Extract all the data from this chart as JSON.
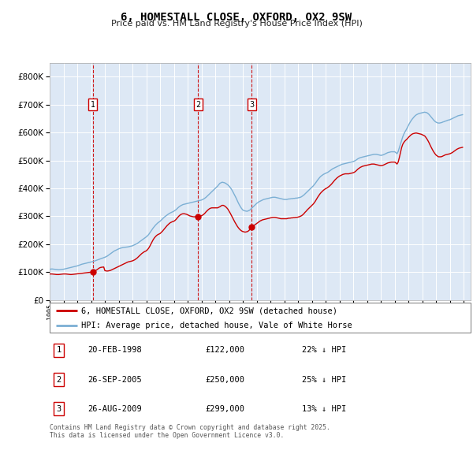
{
  "title": "6, HOMESTALL CLOSE, OXFORD, OX2 9SW",
  "subtitle": "Price paid vs. HM Land Registry's House Price Index (HPI)",
  "legend_property": "6, HOMESTALL CLOSE, OXFORD, OX2 9SW (detached house)",
  "legend_hpi": "HPI: Average price, detached house, Vale of White Horse",
  "footer": "Contains HM Land Registry data © Crown copyright and database right 2025.\nThis data is licensed under the Open Government Licence v3.0.",
  "transactions": [
    {
      "num": 1,
      "date": "20-FEB-1998",
      "price": 122000,
      "pct": "22%",
      "year_x": 1998.13
    },
    {
      "num": 2,
      "date": "26-SEP-2005",
      "price": 250000,
      "pct": "25%",
      "year_x": 2005.75
    },
    {
      "num": 3,
      "date": "26-AUG-2009",
      "price": 299000,
      "pct": "13%",
      "year_x": 2009.65
    }
  ],
  "property_color": "#cc0000",
  "hpi_color": "#7bafd4",
  "background_color": "#dde8f5",
  "ylim": [
    0,
    850000
  ],
  "xlim_start": 1995.0,
  "xlim_end": 2025.5,
  "hpi_data_years": [
    1995.0,
    1995.083,
    1995.167,
    1995.25,
    1995.333,
    1995.417,
    1995.5,
    1995.583,
    1995.667,
    1995.75,
    1995.833,
    1995.917,
    1996.0,
    1996.083,
    1996.167,
    1996.25,
    1996.333,
    1996.417,
    1996.5,
    1996.583,
    1996.667,
    1996.75,
    1996.833,
    1996.917,
    1997.0,
    1997.083,
    1997.167,
    1997.25,
    1997.333,
    1997.417,
    1997.5,
    1997.583,
    1997.667,
    1997.75,
    1997.833,
    1997.917,
    1998.0,
    1998.083,
    1998.167,
    1998.25,
    1998.333,
    1998.417,
    1998.5,
    1998.583,
    1998.667,
    1998.75,
    1998.833,
    1998.917,
    1999.0,
    1999.083,
    1999.167,
    1999.25,
    1999.333,
    1999.417,
    1999.5,
    1999.583,
    1999.667,
    1999.75,
    1999.833,
    1999.917,
    2000.0,
    2000.083,
    2000.167,
    2000.25,
    2000.333,
    2000.417,
    2000.5,
    2000.583,
    2000.667,
    2000.75,
    2000.833,
    2000.917,
    2001.0,
    2001.083,
    2001.167,
    2001.25,
    2001.333,
    2001.417,
    2001.5,
    2001.583,
    2001.667,
    2001.75,
    2001.833,
    2001.917,
    2002.0,
    2002.083,
    2002.167,
    2002.25,
    2002.333,
    2002.417,
    2002.5,
    2002.583,
    2002.667,
    2002.75,
    2002.833,
    2002.917,
    2003.0,
    2003.083,
    2003.167,
    2003.25,
    2003.333,
    2003.417,
    2003.5,
    2003.583,
    2003.667,
    2003.75,
    2003.833,
    2003.917,
    2004.0,
    2004.083,
    2004.167,
    2004.25,
    2004.333,
    2004.417,
    2004.5,
    2004.583,
    2004.667,
    2004.75,
    2004.833,
    2004.917,
    2005.0,
    2005.083,
    2005.167,
    2005.25,
    2005.333,
    2005.417,
    2005.5,
    2005.583,
    2005.667,
    2005.75,
    2005.833,
    2005.917,
    2006.0,
    2006.083,
    2006.167,
    2006.25,
    2006.333,
    2006.417,
    2006.5,
    2006.583,
    2006.667,
    2006.75,
    2006.833,
    2006.917,
    2007.0,
    2007.083,
    2007.167,
    2007.25,
    2007.333,
    2007.417,
    2007.5,
    2007.583,
    2007.667,
    2007.75,
    2007.833,
    2007.917,
    2008.0,
    2008.083,
    2008.167,
    2008.25,
    2008.333,
    2008.417,
    2008.5,
    2008.583,
    2008.667,
    2008.75,
    2008.833,
    2008.917,
    2009.0,
    2009.083,
    2009.167,
    2009.25,
    2009.333,
    2009.417,
    2009.5,
    2009.583,
    2009.667,
    2009.75,
    2009.833,
    2009.917,
    2010.0,
    2010.083,
    2010.167,
    2010.25,
    2010.333,
    2010.417,
    2010.5,
    2010.583,
    2010.667,
    2010.75,
    2010.833,
    2010.917,
    2011.0,
    2011.083,
    2011.167,
    2011.25,
    2011.333,
    2011.417,
    2011.5,
    2011.583,
    2011.667,
    2011.75,
    2011.833,
    2011.917,
    2012.0,
    2012.083,
    2012.167,
    2012.25,
    2012.333,
    2012.417,
    2012.5,
    2012.583,
    2012.667,
    2012.75,
    2012.833,
    2012.917,
    2013.0,
    2013.083,
    2013.167,
    2013.25,
    2013.333,
    2013.417,
    2013.5,
    2013.583,
    2013.667,
    2013.75,
    2013.833,
    2013.917,
    2014.0,
    2014.083,
    2014.167,
    2014.25,
    2014.333,
    2014.417,
    2014.5,
    2014.583,
    2014.667,
    2014.75,
    2014.833,
    2014.917,
    2015.0,
    2015.083,
    2015.167,
    2015.25,
    2015.333,
    2015.417,
    2015.5,
    2015.583,
    2015.667,
    2015.75,
    2015.833,
    2015.917,
    2016.0,
    2016.083,
    2016.167,
    2016.25,
    2016.333,
    2016.417,
    2016.5,
    2016.583,
    2016.667,
    2016.75,
    2016.833,
    2016.917,
    2017.0,
    2017.083,
    2017.167,
    2017.25,
    2017.333,
    2017.417,
    2017.5,
    2017.583,
    2017.667,
    2017.75,
    2017.833,
    2017.917,
    2018.0,
    2018.083,
    2018.167,
    2018.25,
    2018.333,
    2018.417,
    2018.5,
    2018.583,
    2018.667,
    2018.75,
    2018.833,
    2018.917,
    2019.0,
    2019.083,
    2019.167,
    2019.25,
    2019.333,
    2019.417,
    2019.5,
    2019.583,
    2019.667,
    2019.75,
    2019.833,
    2019.917,
    2020.0,
    2020.083,
    2020.167,
    2020.25,
    2020.333,
    2020.417,
    2020.5,
    2020.583,
    2020.667,
    2020.75,
    2020.833,
    2020.917,
    2021.0,
    2021.083,
    2021.167,
    2021.25,
    2021.333,
    2021.417,
    2021.5,
    2021.583,
    2021.667,
    2021.75,
    2021.833,
    2021.917,
    2022.0,
    2022.083,
    2022.167,
    2022.25,
    2022.333,
    2022.417,
    2022.5,
    2022.583,
    2022.667,
    2022.75,
    2022.833,
    2022.917,
    2023.0,
    2023.083,
    2023.167,
    2023.25,
    2023.333,
    2023.417,
    2023.5,
    2023.583,
    2023.667,
    2023.75,
    2023.833,
    2023.917,
    2024.0,
    2024.083,
    2024.167,
    2024.25,
    2024.333,
    2024.417,
    2024.5,
    2024.583,
    2024.667,
    2024.75,
    2024.833,
    2024.917
  ],
  "hpi_data_values": [
    110000,
    110500,
    111000,
    110500,
    110000,
    109500,
    109000,
    108500,
    108000,
    108500,
    109000,
    109500,
    110000,
    111000,
    112000,
    113000,
    114000,
    115000,
    116000,
    117000,
    118000,
    119000,
    120000,
    121000,
    122000,
    123500,
    125000,
    126500,
    128000,
    129000,
    130000,
    131000,
    132000,
    133000,
    134000,
    135000,
    136000,
    137000,
    138000,
    139500,
    141000,
    142500,
    144000,
    145500,
    147000,
    148500,
    150000,
    151500,
    153000,
    155000,
    157000,
    160000,
    163000,
    166000,
    169000,
    172000,
    175000,
    177000,
    179000,
    181000,
    183000,
    184500,
    186000,
    187000,
    188000,
    188500,
    189000,
    189500,
    190000,
    191000,
    192000,
    193000,
    194000,
    196000,
    198000,
    200000,
    202000,
    205000,
    208000,
    211000,
    214000,
    217000,
    220000,
    223000,
    226000,
    230000,
    234000,
    240000,
    246000,
    252000,
    258000,
    263000,
    268000,
    272000,
    276000,
    279000,
    282000,
    286000,
    290000,
    294000,
    298000,
    301000,
    304000,
    307000,
    310000,
    312000,
    314000,
    316000,
    318000,
    321000,
    324000,
    328000,
    332000,
    335000,
    338000,
    340000,
    342000,
    343000,
    344000,
    345000,
    346000,
    347000,
    348000,
    349000,
    350000,
    351000,
    352000,
    353000,
    354000,
    355000,
    356000,
    357000,
    358000,
    360000,
    362000,
    365000,
    368000,
    372000,
    376000,
    380000,
    384000,
    388000,
    392000,
    396000,
    400000,
    404000,
    408000,
    413000,
    418000,
    420000,
    422000,
    421000,
    420000,
    418000,
    415000,
    412000,
    408000,
    403000,
    397000,
    390000,
    382000,
    374000,
    366000,
    357000,
    348000,
    340000,
    333000,
    327000,
    322000,
    320000,
    319000,
    318000,
    318000,
    320000,
    322000,
    326000,
    330000,
    334000,
    338000,
    342000,
    346000,
    349000,
    352000,
    354000,
    356000,
    358000,
    360000,
    361000,
    362000,
    363000,
    364000,
    365000,
    366000,
    367000,
    368000,
    368000,
    368000,
    367000,
    366000,
    365000,
    364000,
    363000,
    362000,
    361000,
    360000,
    360000,
    360000,
    361000,
    362000,
    362000,
    363000,
    363000,
    364000,
    364000,
    365000,
    365000,
    366000,
    367000,
    368000,
    370000,
    373000,
    376000,
    380000,
    384000,
    388000,
    392000,
    396000,
    400000,
    404000,
    408000,
    413000,
    418000,
    424000,
    430000,
    435000,
    440000,
    444000,
    447000,
    450000,
    452000,
    454000,
    456000,
    458000,
    461000,
    464000,
    467000,
    470000,
    472000,
    474000,
    476000,
    478000,
    480000,
    482000,
    484000,
    486000,
    487000,
    488000,
    489000,
    490000,
    491000,
    492000,
    493000,
    494000,
    495000,
    496000,
    498000,
    500000,
    503000,
    506000,
    508000,
    510000,
    511000,
    512000,
    513000,
    514000,
    515000,
    516000,
    517000,
    518000,
    519000,
    520000,
    521000,
    522000,
    522000,
    522000,
    521000,
    520000,
    519000,
    518000,
    519000,
    520000,
    522000,
    524000,
    526000,
    528000,
    529000,
    530000,
    531000,
    531000,
    531000,
    531000,
    528000,
    524000,
    532000,
    545000,
    558000,
    572000,
    585000,
    595000,
    603000,
    610000,
    618000,
    626000,
    634000,
    641000,
    647000,
    652000,
    657000,
    661000,
    664000,
    666000,
    668000,
    669000,
    670000,
    671000,
    672000,
    673000,
    672000,
    671000,
    668000,
    664000,
    659000,
    654000,
    649000,
    644000,
    640000,
    637000,
    635000,
    634000,
    634000,
    635000,
    636000,
    638000,
    639000,
    641000,
    642000,
    644000,
    645000,
    646000,
    648000,
    650000,
    652000,
    654000,
    656000,
    658000,
    660000,
    661000,
    662000,
    663000,
    664000
  ],
  "prop_data_years": [
    1995.0,
    1995.083,
    1995.167,
    1995.25,
    1995.333,
    1995.417,
    1995.5,
    1995.583,
    1995.667,
    1995.75,
    1995.833,
    1995.917,
    1996.0,
    1996.083,
    1996.167,
    1996.25,
    1996.333,
    1996.417,
    1996.5,
    1996.583,
    1996.667,
    1996.75,
    1996.833,
    1996.917,
    1997.0,
    1997.083,
    1997.167,
    1997.25,
    1997.333,
    1997.417,
    1997.5,
    1997.583,
    1997.667,
    1997.75,
    1997.833,
    1997.917,
    1998.0,
    1998.083,
    1998.167,
    1998.25,
    1998.333,
    1998.417,
    1998.5,
    1998.583,
    1998.667,
    1998.75,
    1998.833,
    1998.917,
    1999.0,
    1999.083,
    1999.167,
    1999.25,
    1999.333,
    1999.417,
    1999.5,
    1999.583,
    1999.667,
    1999.75,
    1999.833,
    1999.917,
    2000.0,
    2000.083,
    2000.167,
    2000.25,
    2000.333,
    2000.417,
    2000.5,
    2000.583,
    2000.667,
    2000.75,
    2000.833,
    2000.917,
    2001.0,
    2001.083,
    2001.167,
    2001.25,
    2001.333,
    2001.417,
    2001.5,
    2001.583,
    2001.667,
    2001.75,
    2001.833,
    2001.917,
    2002.0,
    2002.083,
    2002.167,
    2002.25,
    2002.333,
    2002.417,
    2002.5,
    2002.583,
    2002.667,
    2002.75,
    2002.833,
    2002.917,
    2003.0,
    2003.083,
    2003.167,
    2003.25,
    2003.333,
    2003.417,
    2003.5,
    2003.583,
    2003.667,
    2003.75,
    2003.833,
    2003.917,
    2004.0,
    2004.083,
    2004.167,
    2004.25,
    2004.333,
    2004.417,
    2004.5,
    2004.583,
    2004.667,
    2004.75,
    2004.833,
    2004.917,
    2005.0,
    2005.083,
    2005.167,
    2005.25,
    2005.333,
    2005.417,
    2005.5,
    2005.583,
    2005.667,
    2005.75,
    2005.833,
    2005.917,
    2006.0,
    2006.083,
    2006.167,
    2006.25,
    2006.333,
    2006.417,
    2006.5,
    2006.583,
    2006.667,
    2006.75,
    2006.833,
    2006.917,
    2007.0,
    2007.083,
    2007.167,
    2007.25,
    2007.333,
    2007.417,
    2007.5,
    2007.583,
    2007.667,
    2007.75,
    2007.833,
    2007.917,
    2008.0,
    2008.083,
    2008.167,
    2008.25,
    2008.333,
    2008.417,
    2008.5,
    2008.583,
    2008.667,
    2008.75,
    2008.833,
    2008.917,
    2009.0,
    2009.083,
    2009.167,
    2009.25,
    2009.333,
    2009.417,
    2009.5,
    2009.583,
    2009.667,
    2009.75,
    2009.833,
    2009.917,
    2010.0,
    2010.083,
    2010.167,
    2010.25,
    2010.333,
    2010.417,
    2010.5,
    2010.583,
    2010.667,
    2010.75,
    2010.833,
    2010.917,
    2011.0,
    2011.083,
    2011.167,
    2011.25,
    2011.333,
    2011.417,
    2011.5,
    2011.583,
    2011.667,
    2011.75,
    2011.833,
    2011.917,
    2012.0,
    2012.083,
    2012.167,
    2012.25,
    2012.333,
    2012.417,
    2012.5,
    2012.583,
    2012.667,
    2012.75,
    2012.833,
    2012.917,
    2013.0,
    2013.083,
    2013.167,
    2013.25,
    2013.333,
    2013.417,
    2013.5,
    2013.583,
    2013.667,
    2013.75,
    2013.833,
    2013.917,
    2014.0,
    2014.083,
    2014.167,
    2014.25,
    2014.333,
    2014.417,
    2014.5,
    2014.583,
    2014.667,
    2014.75,
    2014.833,
    2014.917,
    2015.0,
    2015.083,
    2015.167,
    2015.25,
    2015.333,
    2015.417,
    2015.5,
    2015.583,
    2015.667,
    2015.75,
    2015.833,
    2015.917,
    2016.0,
    2016.083,
    2016.167,
    2016.25,
    2016.333,
    2016.417,
    2016.5,
    2016.583,
    2016.667,
    2016.75,
    2016.833,
    2016.917,
    2017.0,
    2017.083,
    2017.167,
    2017.25,
    2017.333,
    2017.417,
    2017.5,
    2017.583,
    2017.667,
    2017.75,
    2017.833,
    2017.917,
    2018.0,
    2018.083,
    2018.167,
    2018.25,
    2018.333,
    2018.417,
    2018.5,
    2018.583,
    2018.667,
    2018.75,
    2018.833,
    2018.917,
    2019.0,
    2019.083,
    2019.167,
    2019.25,
    2019.333,
    2019.417,
    2019.5,
    2019.583,
    2019.667,
    2019.75,
    2019.833,
    2019.917,
    2020.0,
    2020.083,
    2020.167,
    2020.25,
    2020.333,
    2020.417,
    2020.5,
    2020.583,
    2020.667,
    2020.75,
    2020.833,
    2020.917,
    2021.0,
    2021.083,
    2021.167,
    2021.25,
    2021.333,
    2021.417,
    2021.5,
    2021.583,
    2021.667,
    2021.75,
    2021.833,
    2021.917,
    2022.0,
    2022.083,
    2022.167,
    2022.25,
    2022.333,
    2022.417,
    2022.5,
    2022.583,
    2022.667,
    2022.75,
    2022.833,
    2022.917,
    2023.0,
    2023.083,
    2023.167,
    2023.25,
    2023.333,
    2023.417,
    2023.5,
    2023.583,
    2023.667,
    2023.75,
    2023.833,
    2023.917,
    2024.0,
    2024.083,
    2024.167,
    2024.25,
    2024.333,
    2024.417,
    2024.5,
    2024.583,
    2024.667,
    2024.75,
    2024.833,
    2024.917
  ],
  "prop_data_values": [
    93000,
    93000,
    93000,
    92500,
    92000,
    91500,
    91000,
    91000,
    91000,
    91500,
    92000,
    92500,
    93000,
    93000,
    93000,
    92500,
    92000,
    91500,
    91000,
    91000,
    91500,
    92000,
    92500,
    93000,
    93500,
    94000,
    94500,
    95000,
    95500,
    96000,
    96500,
    97000,
    97500,
    98000,
    98500,
    99000,
    99500,
    100000,
    101000,
    103000,
    105000,
    108000,
    111000,
    114000,
    116000,
    117000,
    117500,
    118000,
    105000,
    104000,
    103500,
    104000,
    105000,
    106000,
    108000,
    110000,
    112000,
    114000,
    116000,
    118000,
    120000,
    122000,
    124000,
    126000,
    128000,
    130000,
    132000,
    134000,
    136000,
    137000,
    138000,
    139000,
    140000,
    142000,
    144000,
    147000,
    150000,
    154000,
    158000,
    162000,
    166000,
    169000,
    172000,
    174000,
    176000,
    180000,
    185000,
    192000,
    200000,
    208000,
    216000,
    222000,
    227000,
    231000,
    234000,
    236000,
    238000,
    242000,
    246000,
    251000,
    256000,
    261000,
    266000,
    270000,
    274000,
    277000,
    279000,
    281000,
    282000,
    285000,
    289000,
    294000,
    299000,
    303000,
    306000,
    308000,
    309000,
    309000,
    308000,
    307000,
    305000,
    303000,
    301000,
    300000,
    299000,
    298000,
    298000,
    298000,
    298000,
    299000,
    300000,
    301000,
    302000,
    304000,
    307000,
    311000,
    316000,
    320000,
    324000,
    327000,
    329000,
    330000,
    330000,
    330000,
    330000,
    330000,
    330000,
    332000,
    334000,
    337000,
    339000,
    339000,
    337000,
    334000,
    330000,
    325000,
    318000,
    311000,
    303000,
    295000,
    287000,
    279000,
    272000,
    265000,
    259000,
    254000,
    250000,
    247000,
    245000,
    244000,
    243000,
    244000,
    245000,
    248000,
    252000,
    257000,
    261000,
    265000,
    268000,
    271000,
    274000,
    277000,
    280000,
    283000,
    285000,
    287000,
    288000,
    289000,
    290000,
    291000,
    292000,
    293000,
    294000,
    295000,
    296000,
    296000,
    296000,
    295000,
    294000,
    293000,
    292000,
    291000,
    291000,
    291000,
    291000,
    291000,
    291000,
    292000,
    293000,
    293000,
    294000,
    294000,
    295000,
    295000,
    296000,
    296000,
    297000,
    298000,
    300000,
    302000,
    305000,
    309000,
    314000,
    318000,
    323000,
    327000,
    331000,
    335000,
    339000,
    343000,
    348000,
    354000,
    361000,
    368000,
    374000,
    380000,
    385000,
    389000,
    393000,
    396000,
    399000,
    401000,
    404000,
    407000,
    411000,
    415000,
    420000,
    425000,
    430000,
    434000,
    438000,
    441000,
    444000,
    446000,
    448000,
    450000,
    451000,
    452000,
    452000,
    452000,
    452000,
    453000,
    454000,
    455000,
    456000,
    458000,
    461000,
    465000,
    469000,
    472000,
    475000,
    477000,
    479000,
    480000,
    481000,
    482000,
    483000,
    484000,
    485000,
    486000,
    487000,
    487000,
    487000,
    486000,
    485000,
    484000,
    483000,
    482000,
    481000,
    482000,
    483000,
    485000,
    487000,
    489000,
    491000,
    492000,
    493000,
    494000,
    494000,
    494000,
    494000,
    491000,
    487000,
    494000,
    510000,
    528000,
    546000,
    558000,
    565000,
    570000,
    574000,
    578000,
    583000,
    587000,
    591000,
    594000,
    596000,
    597000,
    598000,
    598000,
    597000,
    596000,
    595000,
    594000,
    592000,
    590000,
    588000,
    583000,
    577000,
    570000,
    562000,
    553000,
    545000,
    537000,
    530000,
    524000,
    519000,
    516000,
    513000,
    513000,
    513000,
    514000,
    516000,
    518000,
    520000,
    521000,
    522000,
    523000,
    524000,
    526000,
    528000,
    531000,
    534000,
    537000,
    540000,
    542000,
    544000,
    545000,
    546000,
    547000
  ]
}
